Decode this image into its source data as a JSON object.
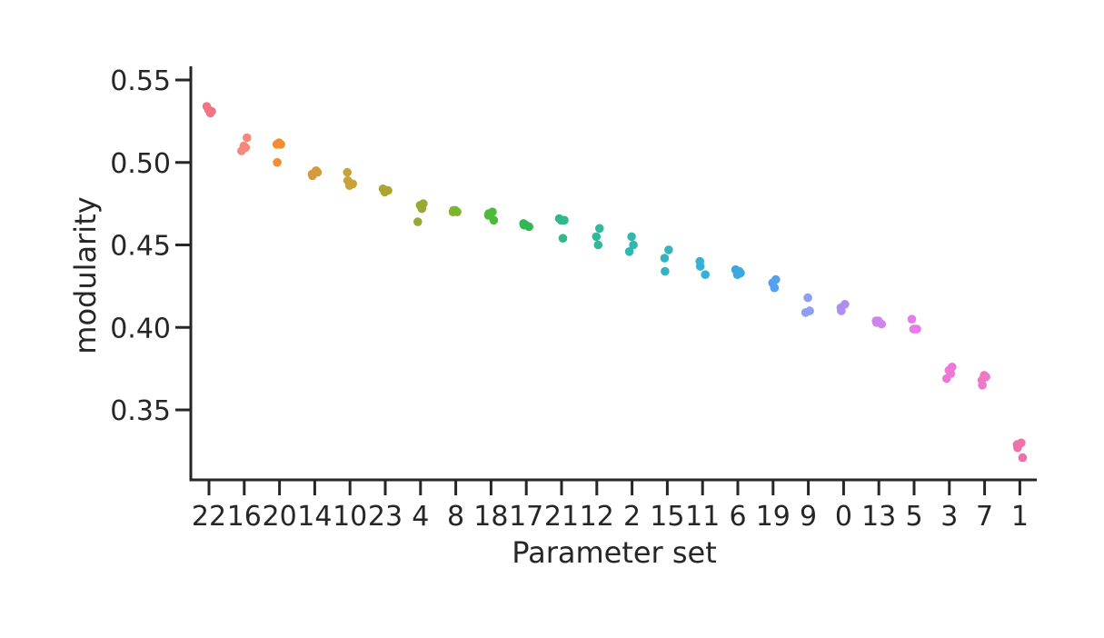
{
  "chart_data": {
    "type": "scatter",
    "title": "",
    "xlabel": "Parameter set",
    "ylabel": "modularity",
    "ylim": [
      0.305,
      0.558
    ],
    "yticks": [
      0.35,
      0.4,
      0.45,
      0.5,
      0.55
    ],
    "ytick_labels": [
      "0.35",
      "0.40",
      "0.45",
      "0.50",
      "0.55"
    ],
    "grid": false,
    "legend": "none",
    "categories": [
      "22",
      "16",
      "20",
      "14",
      "10",
      "23",
      "4",
      "8",
      "18",
      "17",
      "21",
      "12",
      "2",
      "15",
      "11",
      "6",
      "19",
      "9",
      "0",
      "13",
      "5",
      "3",
      "7",
      "1"
    ],
    "colors": [
      "#f27484",
      "#f7877a",
      "#f38d33",
      "#d79939",
      "#c6a33b",
      "#aca52e",
      "#9aa935",
      "#7eb530",
      "#4cb93a",
      "#31b854",
      "#30b88b",
      "#34b89b",
      "#33b6ad",
      "#34b4c0",
      "#37b0d5",
      "#3aa8e1",
      "#52a0f0",
      "#8c9ff0",
      "#ae8fee",
      "#cf83ec",
      "#e97aea",
      "#ef76d7",
      "#ee79c4",
      "#f071a8"
    ],
    "series": [
      {
        "category": "22",
        "values": [
          0.534,
          0.531,
          0.532,
          0.53
        ]
      },
      {
        "category": "16",
        "values": [
          0.515,
          0.51,
          0.509,
          0.507
        ]
      },
      {
        "category": "20",
        "values": [
          0.512,
          0.511,
          0.511,
          0.5
        ]
      },
      {
        "category": "14",
        "values": [
          0.495,
          0.493,
          0.492,
          0.494
        ]
      },
      {
        "category": "10",
        "values": [
          0.494,
          0.489,
          0.487,
          0.486
        ]
      },
      {
        "category": "23",
        "values": [
          0.484,
          0.483,
          0.482,
          0.483
        ]
      },
      {
        "category": "4",
        "values": [
          0.475,
          0.474,
          0.472,
          0.464
        ]
      },
      {
        "category": "8",
        "values": [
          0.471,
          0.47,
          0.47,
          0.471
        ]
      },
      {
        "category": "18",
        "values": [
          0.47,
          0.468,
          0.469,
          0.465
        ]
      },
      {
        "category": "17",
        "values": [
          0.463,
          0.462,
          0.461,
          0.462
        ]
      },
      {
        "category": "21",
        "values": [
          0.466,
          0.465,
          0.465,
          0.454
        ]
      },
      {
        "category": "12",
        "values": [
          0.46,
          0.455,
          0.45
        ]
      },
      {
        "category": "2",
        "values": [
          0.455,
          0.45,
          0.446
        ]
      },
      {
        "category": "15",
        "values": [
          0.447,
          0.442,
          0.434
        ]
      },
      {
        "category": "11",
        "values": [
          0.44,
          0.437,
          0.432
        ]
      },
      {
        "category": "6",
        "values": [
          0.435,
          0.433,
          0.432,
          0.434
        ]
      },
      {
        "category": "19",
        "values": [
          0.429,
          0.427,
          0.424
        ]
      },
      {
        "category": "9",
        "values": [
          0.418,
          0.41,
          0.409
        ]
      },
      {
        "category": "0",
        "values": [
          0.414,
          0.412,
          0.41
        ]
      },
      {
        "category": "13",
        "values": [
          0.404,
          0.403,
          0.402,
          0.404
        ]
      },
      {
        "category": "5",
        "values": [
          0.405,
          0.399,
          0.399,
          0.399
        ]
      },
      {
        "category": "3",
        "values": [
          0.376,
          0.374,
          0.372,
          0.369
        ]
      },
      {
        "category": "7",
        "values": [
          0.371,
          0.37,
          0.368,
          0.365
        ]
      },
      {
        "category": "1",
        "values": [
          0.33,
          0.329,
          0.327,
          0.321
        ]
      }
    ]
  }
}
